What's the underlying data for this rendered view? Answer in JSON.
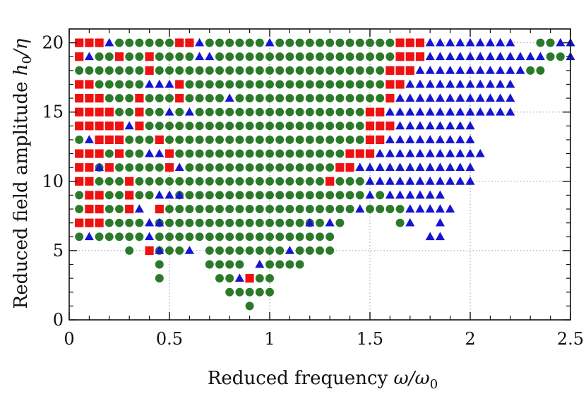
{
  "chart_data": {
    "type": "scatter",
    "title": "",
    "xlabel": {
      "text": "Reduced frequency ",
      "math": "ω/ω",
      "sub": "0"
    },
    "ylabel": {
      "text": "Reduced field amplitude ",
      "math": "h",
      "sub": "0",
      "tail": "/η"
    },
    "xlim": [
      0,
      2.5
    ],
    "ylim": [
      0,
      21
    ],
    "x_ticks": [
      0,
      0.5,
      1,
      1.5,
      2,
      2.5
    ],
    "x_tick_labels": [
      "0",
      "0.5",
      "1",
      "1.5",
      "2",
      "2.5"
    ],
    "y_ticks": [
      0,
      5,
      10,
      15,
      20
    ],
    "y_tick_labels": [
      "0",
      "5",
      "10",
      "15",
      "20"
    ],
    "grid": "dotted",
    "legend": "none",
    "grid_step_x": 0.05,
    "colors": {
      "square": "#ee1111",
      "circle": "#2a7a2a",
      "triangle": "#1515d0"
    },
    "series": [
      {
        "marker": "square",
        "rows": {
          "20": [
            0.05,
            0.1,
            0.15,
            0.55,
            0.6,
            1.65,
            1.7,
            1.75
          ],
          "19": [
            0.05,
            0.25,
            0.4,
            1.65,
            1.7,
            1.75
          ],
          "18": [
            0.4,
            1.6,
            1.65,
            1.7
          ],
          "17": [
            0.05,
            0.1,
            0.55,
            1.6,
            1.65
          ],
          "16": [
            0.05,
            0.1,
            0.15,
            0.35,
            0.55,
            1.6
          ],
          "15": [
            0.05,
            0.1,
            0.15,
            0.2,
            0.35,
            1.5,
            1.55
          ],
          "14": [
            0.05,
            0.1,
            0.15,
            0.2,
            0.25,
            0.35,
            1.5,
            1.55,
            1.6
          ],
          "13": [
            0.15,
            0.2,
            0.25,
            0.45,
            1.5,
            1.55
          ],
          "12": [
            0.05,
            0.1,
            0.15,
            0.25,
            0.5,
            1.4,
            1.45,
            1.5
          ],
          "11": [
            0.05,
            0.1,
            0.2,
            0.5,
            1.35,
            1.4
          ],
          "10": [
            0.05,
            0.1,
            0.3,
            1.3
          ],
          "9": [
            0.1,
            0.15,
            0.3
          ],
          "8": [
            0.1,
            0.15,
            0.3,
            0.45
          ],
          "7": [
            0.05,
            0.1,
            0.15
          ],
          "5": [
            0.4
          ],
          "3": [
            0.9
          ]
        }
      },
      {
        "marker": "circle",
        "rows": {
          "20": [
            0.25,
            0.3,
            0.35,
            0.4,
            0.45,
            0.5,
            0.7,
            0.75,
            0.8,
            0.85,
            0.9,
            0.95,
            1.05,
            1.1,
            1.15,
            1.2,
            1.25,
            1.3,
            1.35,
            1.4,
            1.45,
            1.5,
            1.55,
            1.6,
            2.35,
            2.4
          ],
          "19": [
            0.15,
            0.2,
            0.3,
            0.35,
            0.45,
            0.5,
            0.55,
            0.6,
            0.75,
            0.8,
            0.85,
            0.9,
            0.95,
            1.0,
            1.05,
            1.1,
            1.15,
            1.2,
            1.25,
            1.3,
            1.35,
            1.4,
            1.45,
            1.5,
            1.55,
            1.6,
            2.4,
            2.45
          ],
          "18": [
            0.05,
            0.1,
            0.15,
            0.2,
            0.25,
            0.3,
            0.35,
            0.45,
            0.5,
            0.55,
            0.6,
            0.65,
            0.7,
            0.75,
            0.8,
            0.85,
            0.9,
            0.95,
            1.0,
            1.05,
            1.1,
            1.15,
            1.2,
            1.25,
            1.3,
            1.35,
            1.4,
            1.45,
            1.5,
            1.55,
            2.3,
            2.35
          ],
          "17": [
            0.15,
            0.2,
            0.25,
            0.3,
            0.35,
            0.6,
            0.65,
            0.7,
            0.75,
            0.8,
            0.85,
            0.9,
            0.95,
            1.0,
            1.05,
            1.1,
            1.15,
            1.2,
            1.25,
            1.3,
            1.35,
            1.4,
            1.45,
            1.5,
            1.55
          ],
          "16": [
            0.2,
            0.25,
            0.3,
            0.4,
            0.45,
            0.5,
            0.6,
            0.65,
            0.7,
            0.75,
            0.85,
            0.9,
            0.95,
            1.0,
            1.05,
            1.1,
            1.15,
            1.2,
            1.25,
            1.3,
            1.35,
            1.4,
            1.45,
            1.5,
            1.55
          ],
          "15": [
            0.25,
            0.3,
            0.4,
            0.45,
            0.55,
            0.65,
            0.7,
            0.75,
            0.8,
            0.85,
            0.9,
            0.95,
            1.0,
            1.05,
            1.1,
            1.15,
            1.2,
            1.25,
            1.3,
            1.35,
            1.4,
            1.45
          ],
          "14": [
            0.4,
            0.45,
            0.5,
            0.55,
            0.6,
            0.65,
            0.7,
            0.75,
            0.8,
            0.85,
            0.9,
            0.95,
            1.0,
            1.05,
            1.1,
            1.15,
            1.2,
            1.25,
            1.3,
            1.35,
            1.4,
            1.45
          ],
          "13": [
            0.05,
            0.3,
            0.35,
            0.4,
            0.5,
            0.55,
            0.6,
            0.65,
            0.7,
            0.75,
            0.8,
            0.85,
            0.9,
            0.95,
            1.0,
            1.05,
            1.1,
            1.15,
            1.2,
            1.25,
            1.3,
            1.35,
            1.4,
            1.45
          ],
          "12": [
            0.2,
            0.3,
            0.35,
            0.55,
            0.6,
            0.65,
            0.7,
            0.75,
            0.8,
            0.85,
            0.9,
            0.95,
            1.0,
            1.05,
            1.1,
            1.15,
            1.2,
            1.25,
            1.3,
            1.35
          ],
          "11": [
            0.15,
            0.25,
            0.3,
            0.35,
            0.4,
            0.45,
            0.6,
            0.65,
            0.7,
            0.75,
            0.8,
            0.85,
            0.9,
            0.95,
            1.0,
            1.05,
            1.1,
            1.15,
            1.2,
            1.25,
            1.3
          ],
          "10": [
            0.15,
            0.2,
            0.25,
            0.35,
            0.4,
            0.45,
            0.5,
            0.55,
            0.6,
            0.65,
            0.7,
            0.75,
            0.8,
            0.85,
            0.9,
            0.95,
            1.0,
            1.05,
            1.1,
            1.15,
            1.2,
            1.25,
            1.35,
            1.4,
            1.45
          ],
          "9": [
            0.05,
            0.2,
            0.25,
            0.35,
            0.4,
            0.55,
            0.6,
            0.65,
            0.7,
            0.75,
            0.8,
            0.85,
            0.9,
            0.95,
            1.0,
            1.05,
            1.1,
            1.15,
            1.2,
            1.25,
            1.3,
            1.35,
            1.4,
            1.45,
            1.55
          ],
          "8": [
            0.05,
            0.2,
            0.25,
            0.5,
            0.55,
            0.6,
            0.65,
            0.7,
            0.75,
            0.8,
            0.85,
            0.9,
            0.95,
            1.0,
            1.05,
            1.1,
            1.15,
            1.2,
            1.25,
            1.3,
            1.35,
            1.4,
            1.5,
            1.55,
            1.6,
            1.65
          ],
          "7": [
            0.2,
            0.25,
            0.3,
            0.35,
            0.45,
            0.5,
            0.55,
            0.6,
            0.65,
            0.7,
            0.75,
            0.8,
            0.85,
            0.9,
            0.95,
            1.0,
            1.05,
            1.1,
            1.15,
            1.2,
            1.25,
            1.35,
            1.65
          ],
          "6": [
            0.05,
            0.15,
            0.2,
            0.25,
            0.3,
            0.35,
            0.45,
            0.5,
            0.55,
            0.6,
            0.65,
            0.7,
            0.75,
            0.8,
            0.85,
            0.9,
            0.95,
            1.0,
            1.05,
            1.1,
            1.15,
            1.2,
            1.25,
            1.3
          ],
          "5": [
            0.3,
            0.45,
            0.5,
            0.55,
            0.7,
            0.75,
            0.8,
            0.85,
            0.9,
            0.95,
            1.0,
            1.05,
            1.15,
            1.2,
            1.25,
            1.3
          ],
          "4": [
            0.45,
            0.7,
            0.75,
            0.8,
            0.85,
            1.0,
            1.05,
            1.1,
            1.15
          ],
          "3": [
            0.45,
            0.75,
            0.8,
            0.95,
            1.0
          ],
          "2": [
            0.8,
            0.85,
            0.9,
            0.95,
            1.0
          ],
          "1": [
            0.9
          ]
        }
      },
      {
        "marker": "triangle",
        "rows": {
          "20": [
            0.2,
            0.65,
            1.0,
            1.8,
            1.85,
            1.9,
            1.95,
            2.0,
            2.05,
            2.1,
            2.15,
            2.2,
            2.45,
            2.5
          ],
          "19": [
            0.1,
            0.65,
            0.7,
            1.8,
            1.85,
            1.9,
            1.95,
            2.0,
            2.05,
            2.1,
            2.15,
            2.2,
            2.25,
            2.3,
            2.35,
            2.5
          ],
          "18": [
            1.75,
            1.8,
            1.85,
            1.9,
            1.95,
            2.0,
            2.05,
            2.1,
            2.15,
            2.2,
            2.25
          ],
          "17": [
            0.4,
            0.45,
            0.5,
            1.7,
            1.75,
            1.8,
            1.85,
            1.9,
            1.95,
            2.0,
            2.05,
            2.1,
            2.15,
            2.2
          ],
          "16": [
            0.8,
            1.65,
            1.7,
            1.75,
            1.8,
            1.85,
            1.9,
            1.95,
            2.0,
            2.05,
            2.1,
            2.15,
            2.2
          ],
          "15": [
            0.5,
            0.6,
            1.6,
            1.65,
            1.7,
            1.75,
            1.8,
            1.85,
            1.9,
            1.95,
            2.0,
            2.05,
            2.1,
            2.15,
            2.2
          ],
          "14": [
            0.3,
            1.65,
            1.7,
            1.75,
            1.8,
            1.85,
            1.9,
            1.95,
            2.0
          ],
          "13": [
            0.1,
            1.6,
            1.65,
            1.7,
            1.75,
            1.8,
            1.85,
            1.9,
            1.95,
            2.0
          ],
          "12": [
            0.4,
            0.45,
            1.55,
            1.6,
            1.65,
            1.7,
            1.75,
            1.8,
            1.85,
            1.9,
            1.95,
            2.0,
            2.05
          ],
          "11": [
            0.15,
            0.55,
            1.45,
            1.5,
            1.55,
            1.6,
            1.65,
            1.7,
            1.75,
            1.8,
            1.85,
            1.9,
            1.95,
            2.0
          ],
          "10": [
            1.5,
            1.55,
            1.6,
            1.65,
            1.7,
            1.75,
            1.8,
            1.85,
            1.9,
            1.95,
            2.0
          ],
          "9": [
            0.45,
            0.5,
            0.55,
            1.5,
            1.6,
            1.65,
            1.7,
            1.75,
            1.8,
            1.85
          ],
          "8": [
            0.35,
            1.45,
            1.7,
            1.75,
            1.8,
            1.85,
            1.9
          ],
          "7": [
            0.4,
            0.45,
            1.2,
            1.3,
            1.7,
            1.85
          ],
          "6": [
            0.1,
            0.4,
            1.8,
            1.85
          ],
          "5": [
            0.45,
            0.6,
            1.1
          ],
          "4": [
            0.95
          ],
          "3": [
            0.85
          ]
        }
      }
    ]
  }
}
